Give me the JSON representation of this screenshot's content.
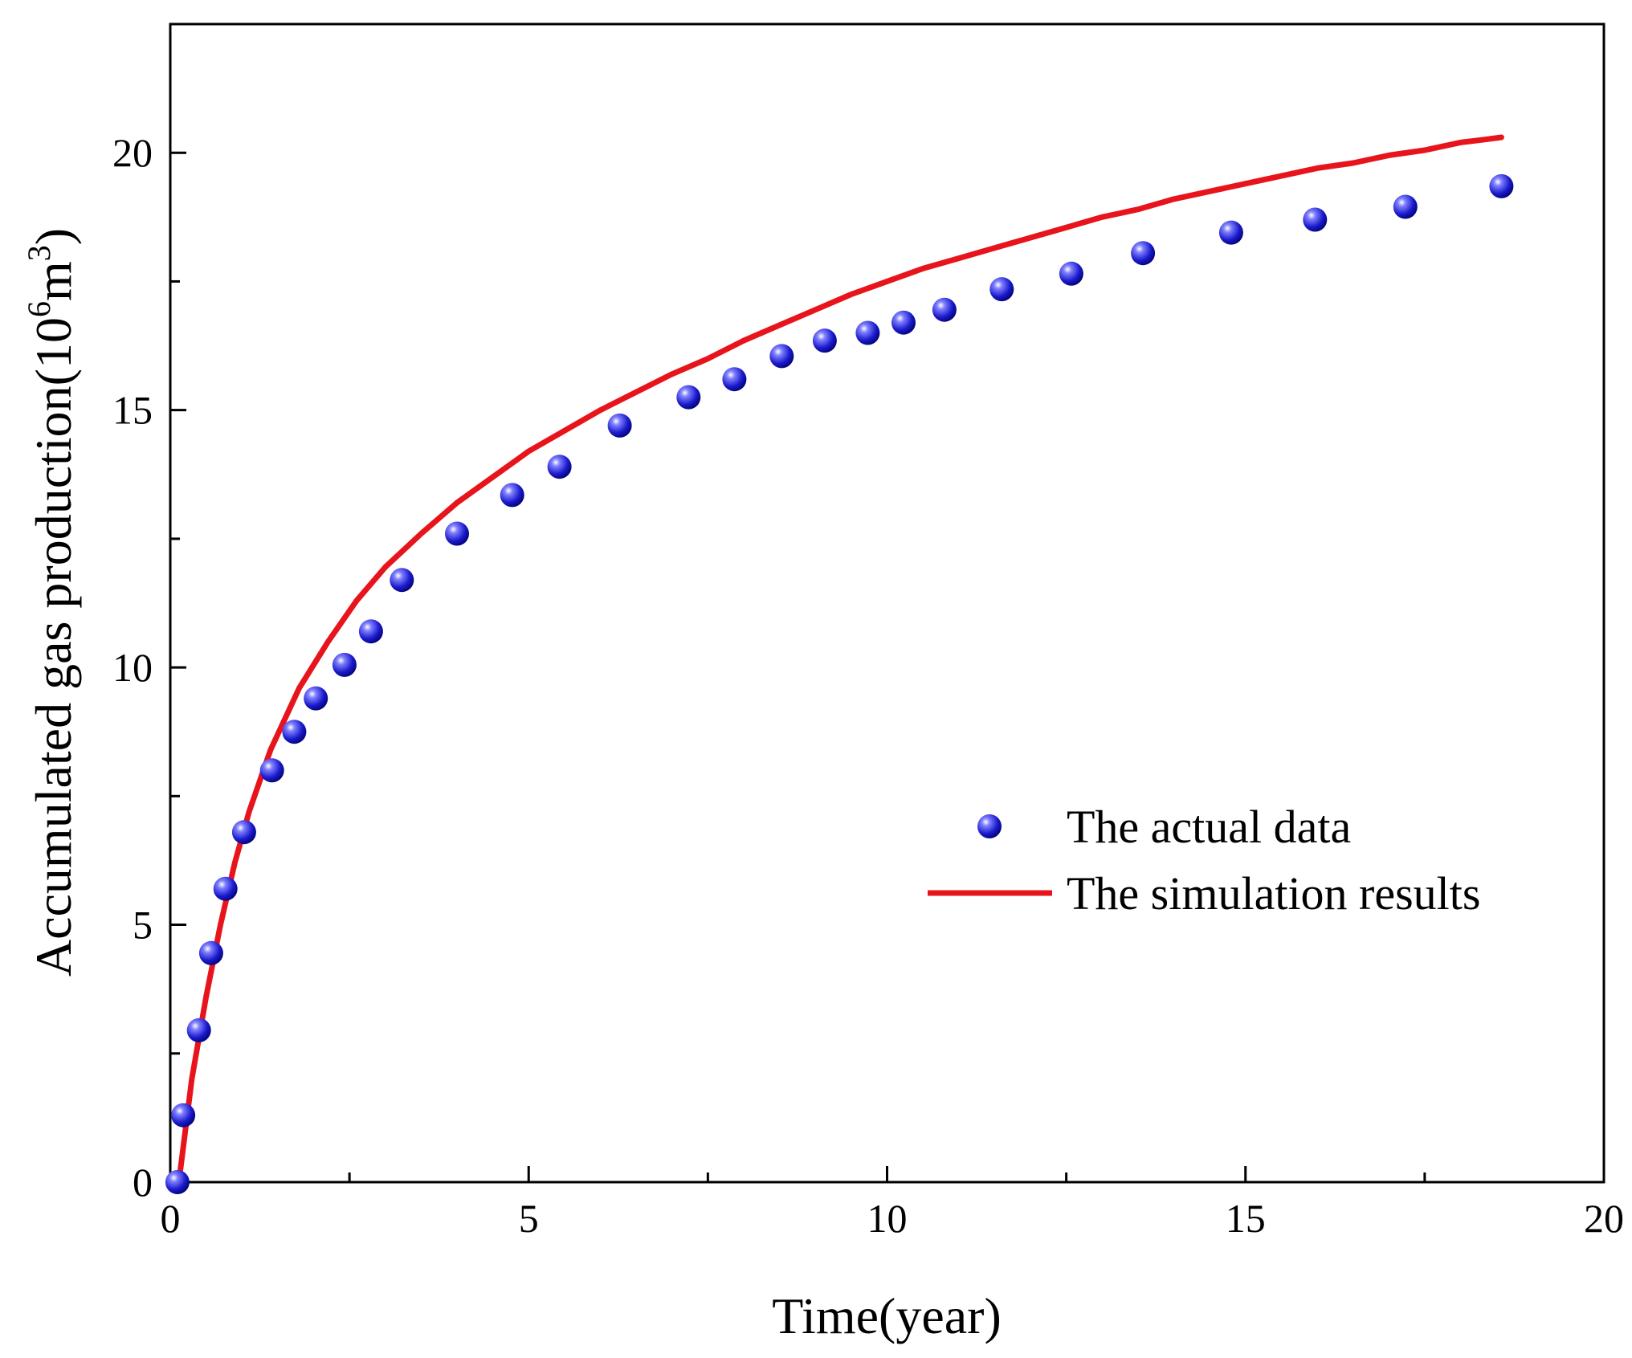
{
  "chart_data": {
    "type": "scatter",
    "title": "",
    "xlabel": "Time(year)",
    "ylabel_main": "Accumulated gas production(10",
    "ylabel_exp1": "6",
    "ylabel_mid": "m",
    "ylabel_exp2": "3",
    "ylabel_close": ")",
    "xlim": [
      0,
      20
    ],
    "ylim": [
      0,
      22.5
    ],
    "xticks": [
      0,
      5,
      10,
      15,
      20
    ],
    "yticks": [
      0,
      5,
      10,
      15,
      20
    ],
    "xtick_labels": [
      "0",
      "5",
      "10",
      "15",
      "20"
    ],
    "ytick_labels": [
      "0",
      "5",
      "10",
      "15",
      "20"
    ],
    "legend_position": "center-right",
    "grid": false,
    "series": [
      {
        "name": "The actual data",
        "kind": "scatter",
        "color": "#1a1acc",
        "x": [
          0.1,
          0.18,
          0.4,
          0.57,
          0.77,
          1.03,
          1.42,
          1.73,
          2.03,
          2.43,
          2.8,
          3.23,
          4.0,
          4.77,
          5.43,
          6.27,
          7.23,
          7.87,
          8.53,
          9.13,
          9.73,
          10.23,
          10.8,
          11.6,
          12.57,
          13.57,
          14.8,
          15.97,
          17.23,
          18.57
        ],
        "y": [
          0.0,
          1.3,
          2.95,
          4.45,
          5.7,
          6.8,
          8.0,
          8.75,
          9.4,
          10.05,
          10.7,
          11.7,
          12.6,
          13.35,
          13.9,
          14.7,
          15.25,
          15.6,
          16.05,
          16.35,
          16.5,
          16.7,
          16.95,
          17.35,
          17.65,
          18.05,
          18.45,
          18.7,
          18.95,
          19.35
        ]
      },
      {
        "name": "The simulation results",
        "kind": "line",
        "color": "#e8141c",
        "x": [
          0.12,
          0.3,
          0.5,
          0.7,
          0.9,
          1.1,
          1.4,
          1.8,
          2.2,
          2.6,
          3.0,
          3.5,
          4.0,
          4.5,
          5.0,
          5.5,
          6.0,
          6.5,
          7.0,
          7.5,
          8.0,
          8.5,
          9.0,
          9.5,
          10.0,
          10.5,
          11.0,
          11.5,
          12.0,
          12.5,
          13.0,
          13.5,
          14.0,
          14.5,
          15.0,
          15.5,
          16.0,
          16.5,
          17.0,
          17.5,
          18.0,
          18.3,
          18.57
        ],
        "y": [
          0.0,
          2.0,
          3.6,
          5.0,
          6.2,
          7.2,
          8.4,
          9.6,
          10.5,
          11.3,
          11.95,
          12.6,
          13.2,
          13.7,
          14.2,
          14.6,
          15.0,
          15.35,
          15.7,
          16.0,
          16.35,
          16.65,
          16.95,
          17.25,
          17.5,
          17.75,
          17.95,
          18.15,
          18.35,
          18.55,
          18.75,
          18.9,
          19.1,
          19.25,
          19.4,
          19.55,
          19.7,
          19.8,
          19.95,
          20.05,
          20.2,
          20.25,
          20.3
        ]
      }
    ]
  }
}
